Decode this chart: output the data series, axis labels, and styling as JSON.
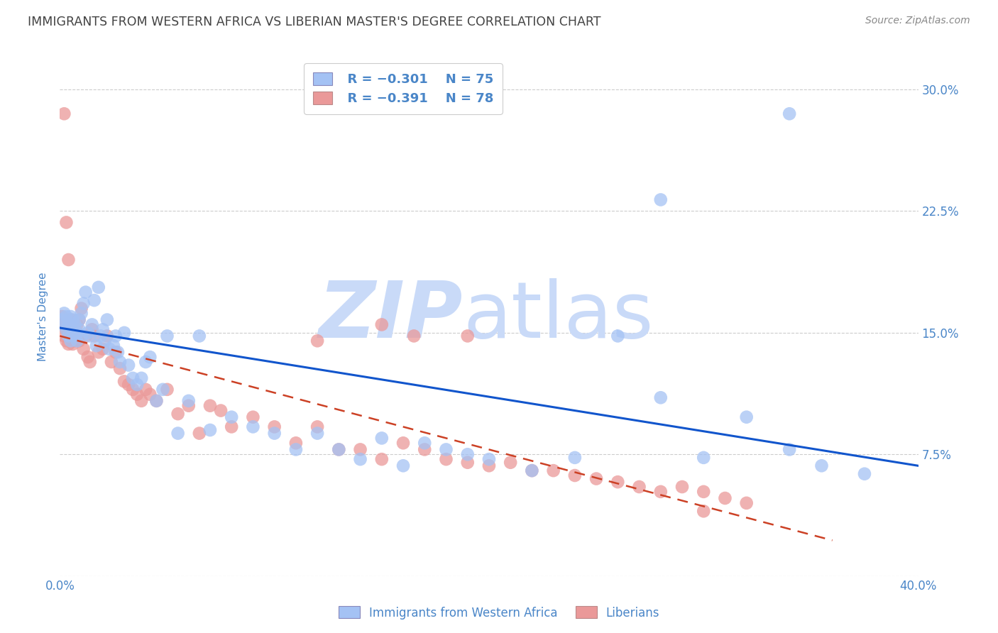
{
  "title": "IMMIGRANTS FROM WESTERN AFRICA VS LIBERIAN MASTER'S DEGREE CORRELATION CHART",
  "source": "Source: ZipAtlas.com",
  "ylabel": "Master's Degree",
  "xlim": [
    0.0,
    0.4
  ],
  "ylim": [
    0.0,
    0.32
  ],
  "yticks": [
    0.0,
    0.075,
    0.15,
    0.225,
    0.3
  ],
  "ytick_labels": [
    "",
    "7.5%",
    "15.0%",
    "22.5%",
    "30.0%"
  ],
  "xticks": [
    0.0,
    0.08,
    0.16,
    0.24,
    0.32,
    0.4
  ],
  "xtick_labels": [
    "0.0%",
    "",
    "",
    "",
    "",
    "40.0%"
  ],
  "legend_blue_r": "R = −0.301",
  "legend_blue_n": "N = 75",
  "legend_pink_r": "R = −0.391",
  "legend_pink_n": "N = 78",
  "blue_color": "#a4c2f4",
  "pink_color": "#ea9999",
  "blue_line_color": "#1155cc",
  "pink_line_color": "#cc4125",
  "title_color": "#434343",
  "axis_color": "#4a86c8",
  "source_color": "#888888",
  "watermark_zip": "ZIP",
  "watermark_atlas": "atlas",
  "watermark_color": "#c9daf8",
  "blue_scatter_x": [
    0.001,
    0.002,
    0.002,
    0.003,
    0.003,
    0.004,
    0.004,
    0.005,
    0.005,
    0.005,
    0.006,
    0.006,
    0.007,
    0.007,
    0.008,
    0.008,
    0.009,
    0.009,
    0.01,
    0.01,
    0.011,
    0.012,
    0.013,
    0.014,
    0.015,
    0.016,
    0.017,
    0.018,
    0.019,
    0.02,
    0.021,
    0.022,
    0.023,
    0.025,
    0.026,
    0.027,
    0.028,
    0.03,
    0.032,
    0.034,
    0.036,
    0.038,
    0.04,
    0.042,
    0.045,
    0.048,
    0.05,
    0.055,
    0.06,
    0.065,
    0.07,
    0.08,
    0.09,
    0.1,
    0.11,
    0.12,
    0.13,
    0.14,
    0.15,
    0.16,
    0.17,
    0.18,
    0.19,
    0.2,
    0.22,
    0.24,
    0.26,
    0.28,
    0.3,
    0.32,
    0.34,
    0.355,
    0.375,
    0.28,
    0.34
  ],
  "blue_scatter_y": [
    0.158,
    0.155,
    0.162,
    0.152,
    0.16,
    0.155,
    0.148,
    0.155,
    0.145,
    0.16,
    0.15,
    0.158,
    0.148,
    0.155,
    0.15,
    0.145,
    0.152,
    0.158,
    0.162,
    0.148,
    0.168,
    0.175,
    0.15,
    0.148,
    0.155,
    0.17,
    0.142,
    0.178,
    0.148,
    0.152,
    0.145,
    0.158,
    0.14,
    0.142,
    0.148,
    0.138,
    0.132,
    0.15,
    0.13,
    0.122,
    0.118,
    0.122,
    0.132,
    0.135,
    0.108,
    0.115,
    0.148,
    0.088,
    0.108,
    0.148,
    0.09,
    0.098,
    0.092,
    0.088,
    0.078,
    0.088,
    0.078,
    0.072,
    0.085,
    0.068,
    0.082,
    0.078,
    0.075,
    0.072,
    0.065,
    0.073,
    0.148,
    0.11,
    0.073,
    0.098,
    0.078,
    0.068,
    0.063,
    0.232,
    0.285
  ],
  "pink_scatter_x": [
    0.001,
    0.001,
    0.002,
    0.002,
    0.003,
    0.003,
    0.004,
    0.004,
    0.005,
    0.005,
    0.006,
    0.006,
    0.007,
    0.007,
    0.008,
    0.008,
    0.009,
    0.009,
    0.01,
    0.011,
    0.012,
    0.013,
    0.014,
    0.015,
    0.016,
    0.018,
    0.02,
    0.022,
    0.024,
    0.026,
    0.028,
    0.03,
    0.032,
    0.034,
    0.036,
    0.038,
    0.04,
    0.042,
    0.045,
    0.05,
    0.055,
    0.06,
    0.065,
    0.07,
    0.075,
    0.08,
    0.09,
    0.1,
    0.11,
    0.12,
    0.13,
    0.14,
    0.15,
    0.16,
    0.17,
    0.18,
    0.19,
    0.2,
    0.21,
    0.22,
    0.23,
    0.24,
    0.25,
    0.26,
    0.27,
    0.28,
    0.29,
    0.3,
    0.31,
    0.32,
    0.002,
    0.003,
    0.004,
    0.12,
    0.15,
    0.165,
    0.19,
    0.3
  ],
  "pink_scatter_y": [
    0.155,
    0.16,
    0.148,
    0.155,
    0.152,
    0.145,
    0.158,
    0.143,
    0.15,
    0.158,
    0.148,
    0.143,
    0.152,
    0.145,
    0.155,
    0.148,
    0.145,
    0.158,
    0.165,
    0.14,
    0.148,
    0.135,
    0.132,
    0.152,
    0.148,
    0.138,
    0.14,
    0.148,
    0.132,
    0.138,
    0.128,
    0.12,
    0.118,
    0.115,
    0.112,
    0.108,
    0.115,
    0.112,
    0.108,
    0.115,
    0.1,
    0.105,
    0.088,
    0.105,
    0.102,
    0.092,
    0.098,
    0.092,
    0.082,
    0.092,
    0.078,
    0.078,
    0.072,
    0.082,
    0.078,
    0.072,
    0.07,
    0.068,
    0.07,
    0.065,
    0.065,
    0.062,
    0.06,
    0.058,
    0.055,
    0.052,
    0.055,
    0.052,
    0.048,
    0.045,
    0.285,
    0.218,
    0.195,
    0.145,
    0.155,
    0.148,
    0.148,
    0.04
  ],
  "blue_trend_x": [
    0.0,
    0.4
  ],
  "blue_trend_y": [
    0.153,
    0.068
  ],
  "pink_trend_x": [
    0.0,
    0.36
  ],
  "pink_trend_y": [
    0.148,
    0.022
  ]
}
